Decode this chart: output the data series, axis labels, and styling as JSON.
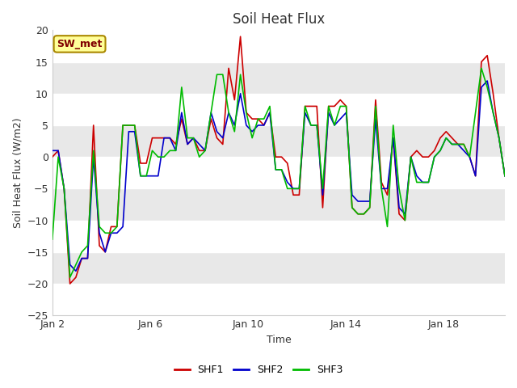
{
  "title": "Soil Heat Flux",
  "xlabel": "Time",
  "ylabel": "Soil Heat Flux (W/m2)",
  "ylim": [
    -25,
    20
  ],
  "yticks": [
    -25,
    -20,
    -15,
    -10,
    -5,
    0,
    5,
    10,
    15,
    20
  ],
  "annotation": "SW_met",
  "line_colors": {
    "SHF1": "#cc0000",
    "SHF2": "#0000cc",
    "SHF3": "#00bb00"
  },
  "xtick_labels": [
    "Jan 2",
    "Jan 6",
    "Jan 10",
    "Jan 14",
    "Jan 18"
  ],
  "xtick_positions": [
    1,
    5,
    9,
    13,
    17
  ],
  "shf1": [
    0,
    1,
    -5,
    -20,
    -19,
    -16,
    -16,
    5,
    -14,
    -15,
    -11,
    -11,
    5,
    5,
    5,
    -1,
    -1,
    3,
    3,
    3,
    3,
    2,
    6,
    2,
    3,
    1,
    1,
    6,
    3,
    2,
    14,
    9,
    19,
    7,
    6,
    6,
    5,
    7,
    0,
    0,
    -1,
    -6,
    -6,
    8,
    8,
    8,
    -8,
    8,
    8,
    9,
    8,
    -8,
    -9,
    -9,
    -8,
    9,
    -4,
    -6,
    3,
    -9,
    -10,
    0,
    1,
    0,
    0,
    1,
    3,
    4,
    3,
    2,
    2,
    0,
    -3,
    15,
    16,
    10,
    3,
    -3
  ],
  "shf2": [
    1,
    1,
    -5,
    -17,
    -18,
    -16,
    -16,
    0,
    -12,
    -15,
    -12,
    -12,
    -11,
    4,
    4,
    -3,
    -3,
    -3,
    -3,
    3,
    3,
    1,
    7,
    2,
    3,
    2,
    1,
    7,
    4,
    3,
    7,
    5,
    10,
    5,
    4,
    5,
    5,
    7,
    -2,
    -2,
    -4,
    -5,
    -5,
    7,
    5,
    5,
    -6,
    7,
    5,
    6,
    7,
    -6,
    -7,
    -7,
    -7,
    6,
    -5,
    -5,
    3,
    -8,
    -9,
    0,
    -3,
    -4,
    -4,
    0,
    1,
    3,
    2,
    2,
    1,
    0,
    -3,
    11,
    12,
    7,
    3,
    -3
  ],
  "shf3": [
    -13,
    0,
    -5,
    -19,
    -17,
    -15,
    -14,
    1,
    -11,
    -12,
    -12,
    -11,
    5,
    5,
    5,
    -3,
    -3,
    1,
    0,
    0,
    1,
    1,
    11,
    3,
    3,
    0,
    1,
    7,
    13,
    13,
    7,
    4,
    13,
    7,
    3,
    6,
    6,
    8,
    -2,
    -2,
    -5,
    -5,
    -5,
    8,
    5,
    5,
    -5,
    8,
    5,
    8,
    8,
    -8,
    -9,
    -9,
    -8,
    8,
    -5,
    -11,
    5,
    -5,
    -10,
    0,
    -4,
    -4,
    -4,
    0,
    1,
    3,
    2,
    2,
    2,
    0,
    7,
    14,
    11,
    7,
    3,
    -3
  ]
}
